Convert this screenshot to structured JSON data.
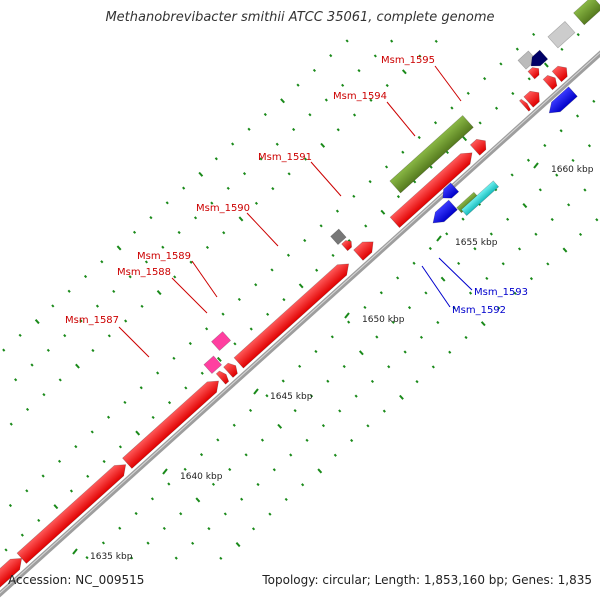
{
  "title": "Methanobrevibacter smithii ATCC 35061, complete genome",
  "footer": {
    "accession": "Accession: NC_009515",
    "summary": "Topology: circular; Length: 1,853,160 bp; Genes: 1,835"
  },
  "scale_ticks": [
    "1635 kbp",
    "1640 kbp",
    "1645 kbp",
    "1650 kbp",
    "1655 kbp",
    "1660 kbp"
  ],
  "genes": [
    {
      "label": "Msm_1587",
      "color": "#cc0000"
    },
    {
      "label": "Msm_1588",
      "color": "#cc0000"
    },
    {
      "label": "Msm_1589",
      "color": "#cc0000"
    },
    {
      "label": "Msm_1590",
      "color": "#cc0000"
    },
    {
      "label": "Msm_1591",
      "color": "#cc0000"
    },
    {
      "label": "Msm_1594",
      "color": "#cc0000"
    },
    {
      "label": "Msm_1595",
      "color": "#cc0000"
    },
    {
      "label": "Msm_1593",
      "color": "#0000cc"
    },
    {
      "label": "Msm_1592",
      "color": "#0000cc"
    }
  ],
  "colors": {
    "backbone": "#9e9e9e",
    "forward_cds": "#ff0000",
    "reverse_cds": "#0000ee",
    "rna": "#ff3fa0",
    "misc": "#777777",
    "feature_green": "#6a9a2a",
    "feature_cyan": "#22d6d6",
    "tick": "#1a8a1a"
  }
}
